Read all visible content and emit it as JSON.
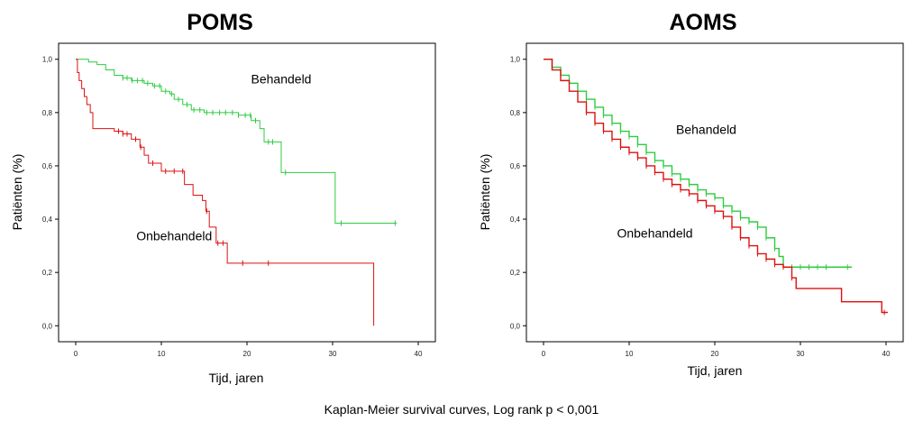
{
  "caption": "Kaplan-Meier survival curves, Log rank p < 0,001",
  "chart_data": [
    {
      "type": "line",
      "title": "POMS",
      "xlabel": "Tijd, jaren",
      "ylabel": "Patiënten (%)",
      "xlim": [
        -2,
        42
      ],
      "ylim": [
        -0.06,
        1.06
      ],
      "xticks": [
        0,
        10,
        20,
        30,
        40
      ],
      "yticks": [
        0.0,
        0.2,
        0.4,
        0.6,
        0.8,
        1.0
      ],
      "yticklabels": [
        "0,0",
        "0,2",
        "0,4",
        "0,6",
        "0,8",
        "1,0"
      ],
      "grid": false,
      "annotations": [
        {
          "text": "Behandeld",
          "x": 24,
          "y": 0.91
        },
        {
          "text": "Onbehandeld",
          "x": 11.5,
          "y": 0.32
        }
      ],
      "series": [
        {
          "name": "Behandeld",
          "color": "#2ecc40",
          "steps": [
            [
              0,
              1.0
            ],
            [
              1.5,
              0.99
            ],
            [
              2.5,
              0.98
            ],
            [
              3.5,
              0.96
            ],
            [
              4.5,
              0.94
            ],
            [
              5.5,
              0.93
            ],
            [
              6.5,
              0.92
            ],
            [
              8,
              0.91
            ],
            [
              9,
              0.9
            ],
            [
              10,
              0.88
            ],
            [
              11,
              0.87
            ],
            [
              11.5,
              0.85
            ],
            [
              12.5,
              0.83
            ],
            [
              13.5,
              0.81
            ],
            [
              15,
              0.8
            ],
            [
              19,
              0.79
            ],
            [
              20.5,
              0.77
            ],
            [
              21.5,
              0.74
            ],
            [
              22,
              0.69
            ],
            [
              23.5,
              0.69
            ],
            [
              24,
              0.575
            ],
            [
              30,
              0.575
            ],
            [
              30.3,
              0.385
            ],
            [
              37.5,
              0.385
            ]
          ],
          "censor_x": [
            5.5,
            6,
            6.6,
            7.2,
            7.8,
            8.4,
            9.2,
            9.8,
            10.5,
            11.2,
            12,
            13,
            13.8,
            14.5,
            15.3,
            16,
            16.8,
            17.5,
            18.3,
            19,
            19.8,
            20.4,
            21,
            22.5,
            23,
            24.5,
            31,
            37.3
          ]
        },
        {
          "name": "Onbehandeld",
          "color": "#dd1111",
          "steps": [
            [
              0,
              1.0
            ],
            [
              0.2,
              0.95
            ],
            [
              0.4,
              0.92
            ],
            [
              0.7,
              0.89
            ],
            [
              1,
              0.86
            ],
            [
              1.3,
              0.83
            ],
            [
              1.7,
              0.8
            ],
            [
              2,
              0.74
            ],
            [
              4.5,
              0.73
            ],
            [
              5.5,
              0.72
            ],
            [
              6.5,
              0.7
            ],
            [
              7.5,
              0.67
            ],
            [
              8,
              0.64
            ],
            [
              8.5,
              0.61
            ],
            [
              10,
              0.58
            ],
            [
              12.7,
              0.53
            ],
            [
              13.7,
              0.49
            ],
            [
              14.8,
              0.47
            ],
            [
              15.2,
              0.43
            ],
            [
              15.6,
              0.37
            ],
            [
              16.4,
              0.31
            ],
            [
              17.7,
              0.235
            ],
            [
              34.8,
              0.235
            ],
            [
              34.8,
              0.0
            ]
          ],
          "censor_x": [
            5,
            5.5,
            6,
            7,
            7.6,
            9,
            10.5,
            11.5,
            12.5,
            15.3,
            16.6,
            17.2,
            19.5,
            22.5
          ]
        }
      ]
    },
    {
      "type": "line",
      "title": "AOMS",
      "xlabel": "Tijd, jaren",
      "ylabel": "Patiënten (%)",
      "xlim": [
        -2,
        42
      ],
      "ylim": [
        -0.06,
        1.06
      ],
      "xticks": [
        0,
        10,
        20,
        30,
        40
      ],
      "yticks": [
        0.0,
        0.2,
        0.4,
        0.6,
        0.8,
        1.0
      ],
      "yticklabels": [
        "0,0",
        "0,2",
        "0,4",
        "0,6",
        "0,8",
        "1,0"
      ],
      "grid": false,
      "annotations": [
        {
          "text": "Behandeld",
          "x": 19,
          "y": 0.72
        },
        {
          "text": "Onbehandeld",
          "x": 13,
          "y": 0.33
        }
      ],
      "series": [
        {
          "name": "Behandeld",
          "color": "#2ecc40",
          "steps": [
            [
              0,
              1.0
            ],
            [
              1,
              0.97
            ],
            [
              2,
              0.94
            ],
            [
              3,
              0.91
            ],
            [
              4,
              0.88
            ],
            [
              5,
              0.85
            ],
            [
              6,
              0.82
            ],
            [
              7,
              0.79
            ],
            [
              8,
              0.76
            ],
            [
              9,
              0.73
            ],
            [
              10,
              0.71
            ],
            [
              11,
              0.68
            ],
            [
              12,
              0.65
            ],
            [
              13,
              0.62
            ],
            [
              14,
              0.6
            ],
            [
              15,
              0.57
            ],
            [
              16,
              0.55
            ],
            [
              17,
              0.53
            ],
            [
              18,
              0.51
            ],
            [
              19,
              0.495
            ],
            [
              20,
              0.48
            ],
            [
              21,
              0.45
            ],
            [
              22,
              0.43
            ],
            [
              23,
              0.405
            ],
            [
              24,
              0.39
            ],
            [
              25,
              0.37
            ],
            [
              26,
              0.33
            ],
            [
              27,
              0.29
            ],
            [
              27.5,
              0.26
            ],
            [
              28,
              0.22
            ],
            [
              29,
              0.22
            ],
            [
              36,
              0.22
            ]
          ],
          "censor_x": [
            5,
            6,
            7,
            8,
            9,
            10,
            11,
            12,
            13,
            14,
            15,
            16,
            17,
            18,
            19,
            20,
            21,
            22,
            23,
            24,
            25,
            26,
            27,
            29,
            30,
            31,
            32,
            33,
            35.5
          ]
        },
        {
          "name": "Onbehandeld",
          "color": "#dd1111",
          "steps": [
            [
              0,
              1.0
            ],
            [
              1,
              0.96
            ],
            [
              2,
              0.92
            ],
            [
              3,
              0.88
            ],
            [
              4,
              0.84
            ],
            [
              5,
              0.8
            ],
            [
              6,
              0.76
            ],
            [
              7,
              0.73
            ],
            [
              8,
              0.7
            ],
            [
              9,
              0.67
            ],
            [
              10,
              0.65
            ],
            [
              11,
              0.63
            ],
            [
              12,
              0.6
            ],
            [
              13,
              0.575
            ],
            [
              14,
              0.55
            ],
            [
              15,
              0.53
            ],
            [
              16,
              0.51
            ],
            [
              17,
              0.495
            ],
            [
              18,
              0.47
            ],
            [
              19,
              0.45
            ],
            [
              20,
              0.43
            ],
            [
              21,
              0.41
            ],
            [
              22,
              0.37
            ],
            [
              23,
              0.33
            ],
            [
              24,
              0.3
            ],
            [
              25,
              0.27
            ],
            [
              26,
              0.25
            ],
            [
              27,
              0.23
            ],
            [
              28,
              0.22
            ],
            [
              29,
              0.18
            ],
            [
              29.5,
              0.14
            ],
            [
              34.8,
              0.14
            ],
            [
              34.8,
              0.09
            ],
            [
              39.5,
              0.09
            ],
            [
              39.5,
              0.05
            ],
            [
              40.2,
              0.05
            ]
          ],
          "censor_x": [
            5,
            6,
            7,
            8,
            9,
            10,
            11,
            12,
            13,
            14,
            15,
            16,
            17,
            18,
            19,
            20,
            21,
            22,
            23,
            24,
            25,
            26,
            27,
            28,
            29,
            39.8
          ]
        }
      ]
    }
  ]
}
